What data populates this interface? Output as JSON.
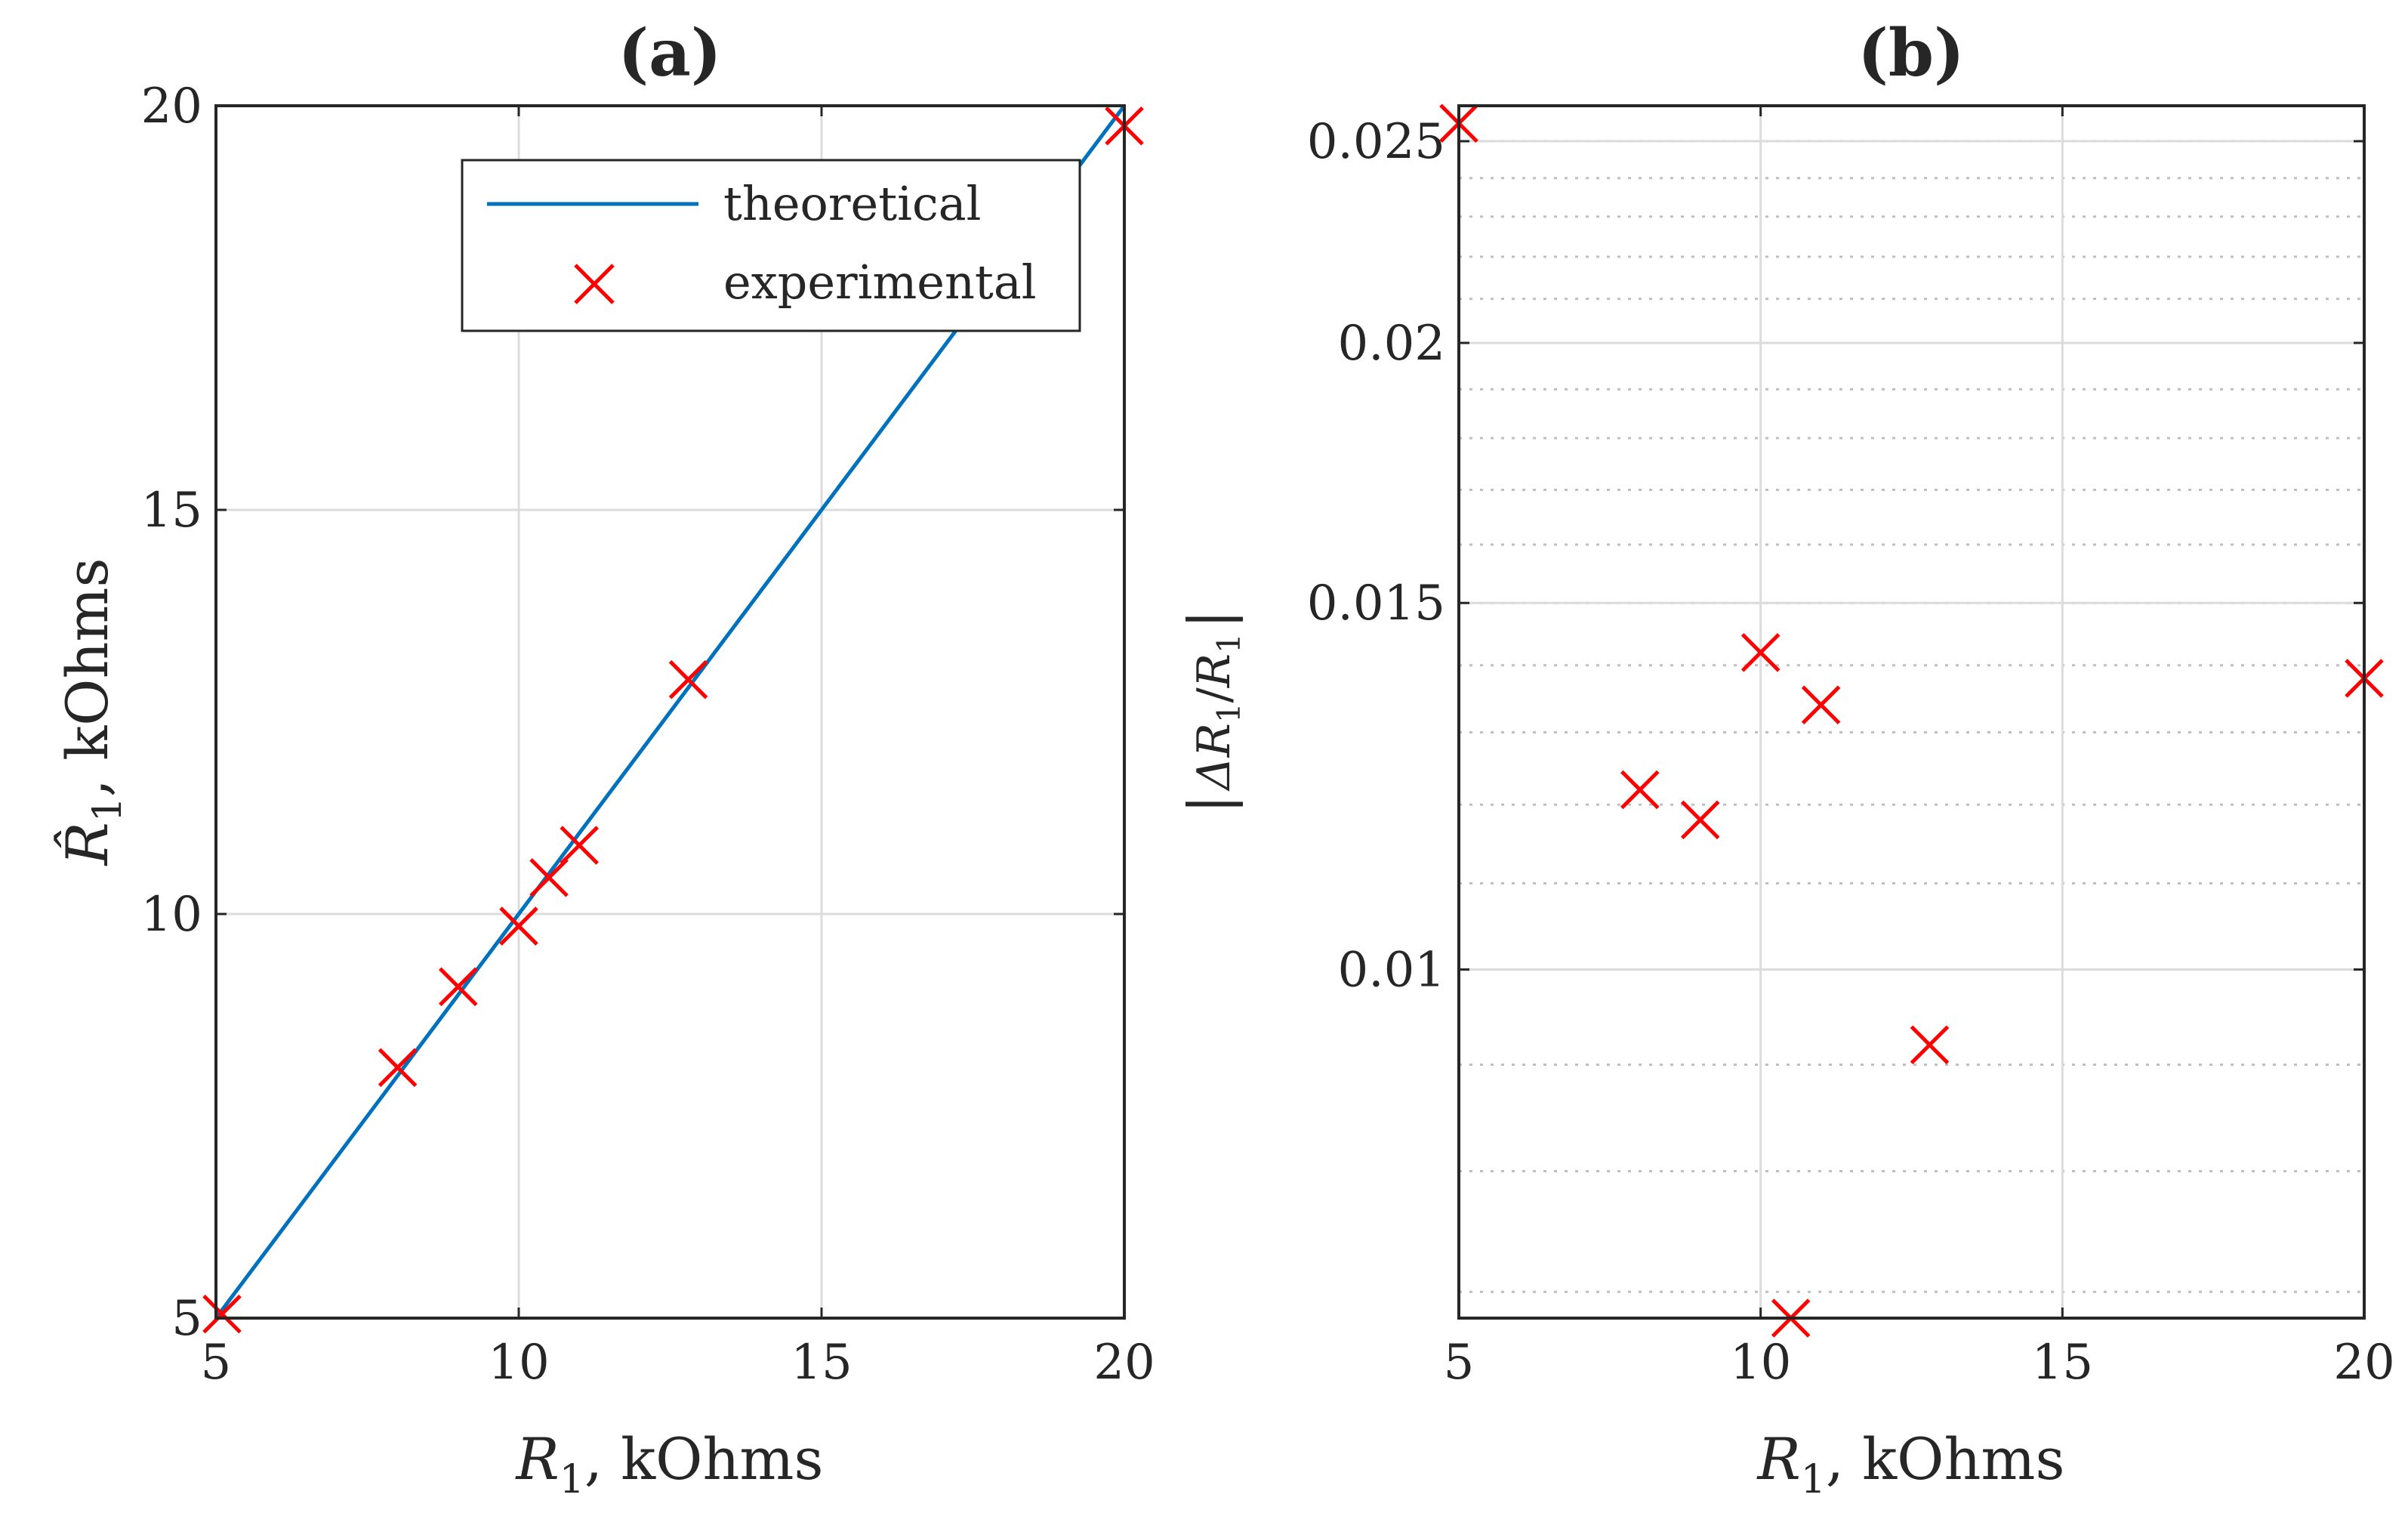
{
  "colors": {
    "theory_line": "#0072BD",
    "marker": "#FF0000",
    "axes": "#262626",
    "grid_major": "#dcdcdc",
    "grid_minor": "#bfbfbf"
  },
  "chart_data": [
    {
      "type": "line+scatter",
      "title": "(a)",
      "xlabel": "R1, kOhms",
      "ylabel": "R̂1, kOhms",
      "xlim": [
        5,
        20
      ],
      "ylim": [
        5,
        20
      ],
      "xticks": [
        "5",
        "10",
        "15",
        "20"
      ],
      "yticks": [
        "5",
        "10",
        "15",
        "20"
      ],
      "grid": "major",
      "legend": {
        "position": "top-right",
        "entries": [
          "theoretical",
          "experimental"
        ]
      },
      "series": [
        {
          "name": "theoretical",
          "kind": "line",
          "x": [
            5,
            20
          ],
          "y": [
            5,
            20
          ]
        },
        {
          "name": "experimental",
          "kind": "x-markers",
          "x": [
            5.1,
            8.0,
            9.0,
            10.0,
            10.5,
            11.0,
            12.8,
            20.0
          ],
          "y": [
            5.05,
            8.1,
            9.1,
            9.85,
            10.45,
            10.85,
            12.9,
            19.75
          ]
        }
      ]
    },
    {
      "type": "scatter",
      "title": "(b)",
      "xlabel": "R1, kOhms",
      "ylabel": "|ΔR1 / R1|",
      "xlim": [
        5,
        20
      ],
      "ylim": [
        0.0068,
        0.026
      ],
      "yscale": "log",
      "xticks": [
        "5",
        "10",
        "15",
        "20"
      ],
      "yticks": [
        "0.01",
        "0.015",
        "0.02",
        "0.025"
      ],
      "grid": "major+minor",
      "series": [
        {
          "name": "experimental",
          "kind": "x-markers",
          "x": [
            5.0,
            8.0,
            9.0,
            10.0,
            10.5,
            11.0,
            12.8,
            20.0
          ],
          "y": [
            0.0255,
            0.0122,
            0.0118,
            0.0142,
            0.0068,
            0.0134,
            0.0092,
            0.0138
          ]
        }
      ]
    }
  ]
}
